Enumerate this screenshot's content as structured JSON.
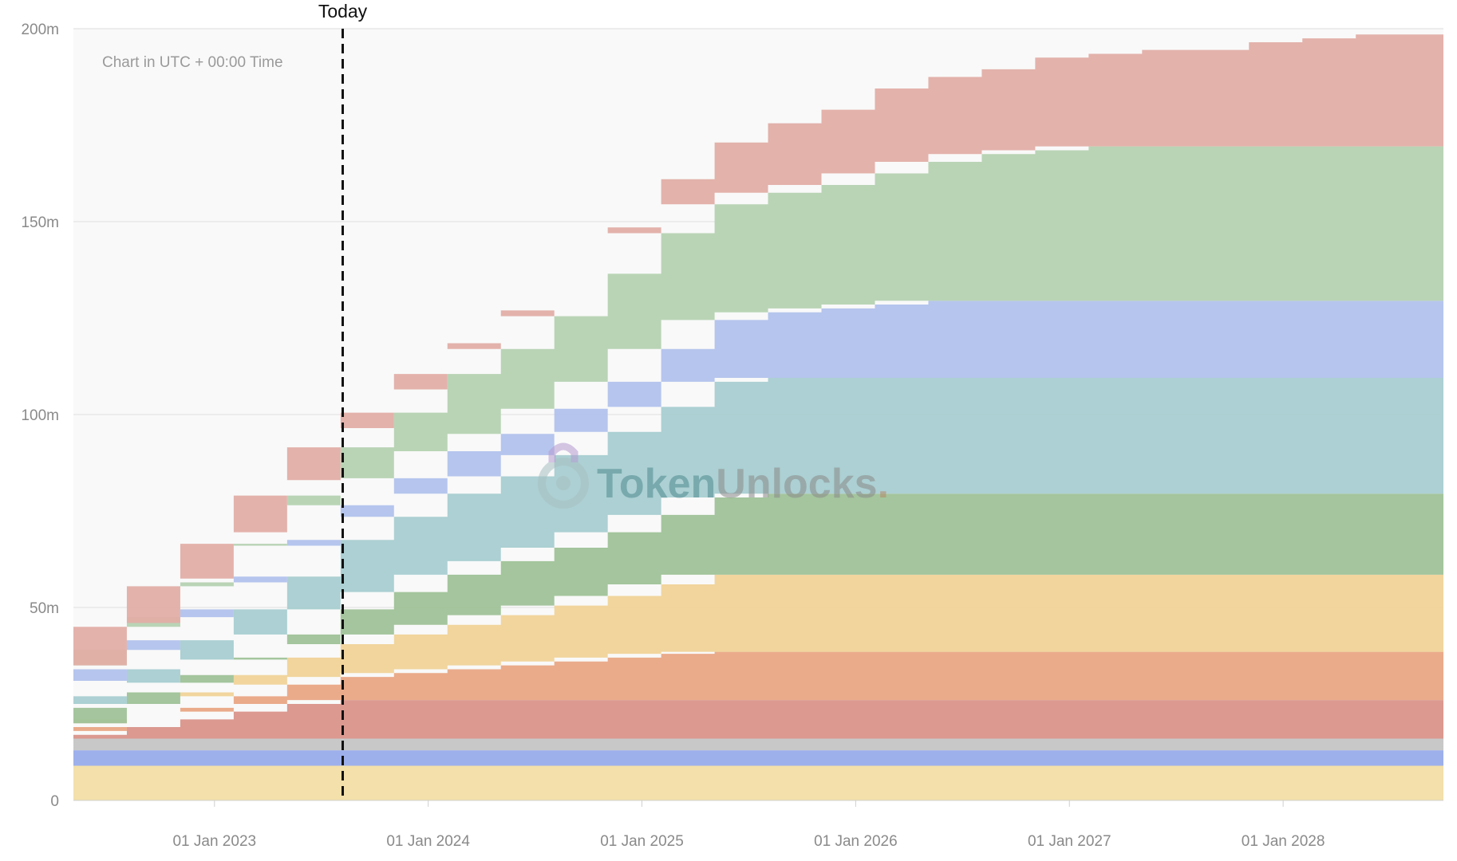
{
  "chart_data": {
    "type": "area",
    "stacked": true,
    "note": "Chart in UTC + 00:00 Time",
    "watermark": {
      "part1": "Token",
      "part2": "Unlocks",
      "dot": ".",
      "part1_color": "#4e8a8f",
      "part2_color": "#8a8a8a"
    },
    "today": {
      "label": "Today",
      "x": 2023.6
    },
    "x_ticks": [
      {
        "label": "01 Jan 2023",
        "x": 2023.0
      },
      {
        "label": "01 Jan 2024",
        "x": 2024.0
      },
      {
        "label": "01 Jan 2025",
        "x": 2025.0
      },
      {
        "label": "01 Jan 2026",
        "x": 2026.0
      },
      {
        "label": "01 Jan 2027",
        "x": 2027.0
      },
      {
        "label": "01 Jan 2028",
        "x": 2028.0
      }
    ],
    "y_ticks": [
      {
        "label": "0",
        "v": 0
      },
      {
        "label": "50m",
        "v": 50
      },
      {
        "label": "100m",
        "v": 100
      },
      {
        "label": "150m",
        "v": 150
      },
      {
        "label": "200m",
        "v": 200
      }
    ],
    "xlim": [
      2022.34,
      2028.75
    ],
    "ylim": [
      0,
      200
    ],
    "grid": true,
    "x_dates": [
      2022.34,
      2022.59,
      2022.84,
      2023.09,
      2023.34,
      2023.59,
      2023.84,
      2024.09,
      2024.34,
      2024.59,
      2024.84,
      2025.09,
      2025.34,
      2025.59,
      2025.84,
      2026.09,
      2026.34,
      2026.59,
      2026.84,
      2027.09,
      2027.34,
      2027.59,
      2027.84,
      2028.09,
      2028.34,
      2028.75
    ],
    "series": [
      {
        "color": "#f2dea5",
        "values": [
          9,
          9,
          9,
          9,
          9,
          9,
          9,
          9,
          9,
          9,
          9,
          9,
          9,
          9,
          9,
          9,
          9,
          9,
          9,
          9,
          9,
          9,
          9,
          9,
          9,
          9
        ]
      },
      {
        "color": "#98aceb",
        "values": [
          4,
          4,
          4,
          4,
          4,
          4,
          4,
          4,
          4,
          4,
          4,
          4,
          4,
          4,
          4,
          4,
          4,
          4,
          4,
          4,
          4,
          4,
          4,
          4,
          4,
          4
        ]
      },
      {
        "color": "#c5c5c5",
        "values": [
          3,
          3,
          3,
          3,
          3,
          3,
          3,
          3,
          3,
          3,
          3,
          3,
          3,
          3,
          3,
          3,
          3,
          3,
          3,
          3,
          3,
          3,
          3,
          3,
          3,
          3
        ]
      },
      {
        "color": "#d9938a",
        "values": [
          1,
          3,
          5,
          7,
          9,
          10,
          10,
          10,
          10,
          10,
          10,
          10,
          10,
          10,
          10,
          10,
          10,
          10,
          10,
          10,
          10,
          10,
          10,
          10,
          10,
          10
        ]
      },
      {
        "color": "#e9a785",
        "values": [
          1,
          2,
          3,
          4,
          5,
          6,
          7,
          8,
          9,
          10,
          11,
          12,
          12.5,
          12.5,
          12.5,
          12.5,
          12.5,
          12.5,
          12.5,
          12.5,
          12.5,
          12.5,
          12.5,
          12.5,
          12.5,
          12.5
        ]
      },
      {
        "color": "#f0d398",
        "values": [
          2,
          3,
          4,
          5.5,
          7,
          8.5,
          10,
          11.5,
          13,
          14.5,
          16,
          18,
          20,
          20,
          20,
          20,
          20,
          20,
          20,
          20,
          20,
          20,
          20,
          20,
          20,
          20
        ]
      },
      {
        "color": "#9fc298",
        "values": [
          0,
          1,
          2.5,
          4,
          6,
          9,
          11,
          13,
          14,
          15,
          16.5,
          18,
          20,
          21,
          21,
          21,
          21,
          21,
          21,
          21,
          21,
          21,
          21,
          21,
          21,
          21
        ]
      },
      {
        "color": "#a8cdd1",
        "values": [
          7,
          9,
          11,
          13,
          15,
          18,
          19.5,
          21,
          22,
          24,
          26,
          28,
          30,
          30,
          30,
          30,
          30,
          30,
          30,
          30,
          30,
          30,
          30,
          30,
          30,
          30
        ]
      },
      {
        "color": "#b1c2ec",
        "values": [
          4,
          5,
          6,
          7,
          8,
          9,
          10,
          11,
          11,
          12,
          13,
          15,
          16,
          17,
          18,
          19,
          20,
          20,
          20,
          20,
          20,
          20,
          20,
          20,
          20,
          20
        ]
      },
      {
        "color": "#b5d2b1",
        "values": [
          4,
          6,
          8,
          10,
          13,
          15,
          17,
          20,
          22,
          24,
          28,
          30,
          30,
          31,
          32,
          34,
          36,
          38,
          39,
          40,
          40,
          40,
          40,
          40,
          40,
          40
        ]
      },
      {
        "color": "#e2aea7",
        "values": [
          0,
          1,
          2,
          3,
          4,
          5,
          6,
          8,
          10,
          11,
          12,
          14,
          16,
          18,
          19.5,
          22,
          22,
          22,
          24,
          24,
          25,
          25,
          27,
          28,
          29,
          30
        ]
      }
    ]
  }
}
